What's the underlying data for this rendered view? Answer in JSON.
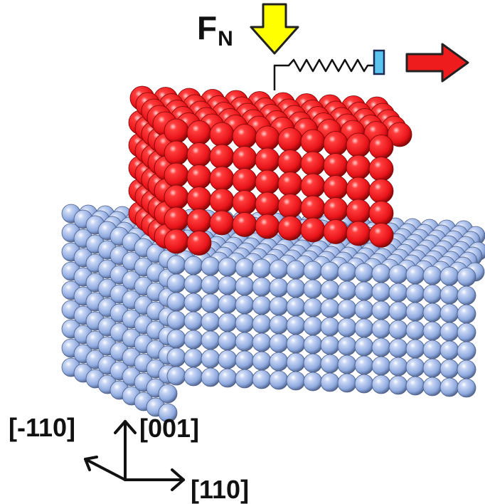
{
  "force": {
    "symbol": "F",
    "subscript": "N"
  },
  "axes": {
    "vertical": "[001]",
    "left": "[-110]",
    "right": "[110]"
  },
  "colors": {
    "substrate": "#8faae0",
    "substrate_dark": "#4d5f88",
    "nanoparticle": "#e8141a",
    "nanoparticle_dark": "#7a0505",
    "force_arrow": "#ffff00",
    "pull_arrow": "#ee1c1c",
    "spring_block": "#5bc4ef"
  },
  "icons": {
    "force_arrow": "down-arrow-icon",
    "pull_arrow": "right-arrow-icon",
    "spring": "spring-icon"
  }
}
